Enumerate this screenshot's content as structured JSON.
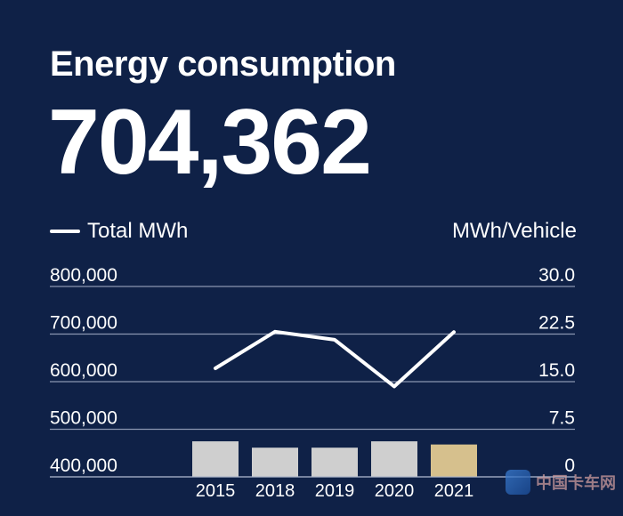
{
  "header": {
    "title": "Energy consumption",
    "big_number": "704,362"
  },
  "legend": {
    "series_label": "Total MWh",
    "right_axis_label": "MWh/Vehicle"
  },
  "watermark": {
    "text": "中国卡车网"
  },
  "colors": {
    "background": "#0f2147",
    "line": "#ffffff",
    "bar": "#cfcfcf",
    "bar_highlight": "#d6c08d",
    "grid": "#aab4cc"
  },
  "chart_data": {
    "type": "bar+line",
    "categories": [
      "2015",
      "2018",
      "2019",
      "2020",
      "2021"
    ],
    "left_axis": {
      "ticks": [
        "800,000",
        "700,000",
        "600,000",
        "500,000",
        "400,000"
      ],
      "ylim": [
        400000,
        800000
      ]
    },
    "right_axis": {
      "ticks": [
        "30.0",
        "22.5",
        "15.0",
        "7.5",
        "0"
      ],
      "ylim": [
        0,
        30
      ]
    },
    "series": [
      {
        "name": "Total MWh",
        "kind": "line",
        "axis": "left",
        "values": [
          628000,
          705000,
          688000,
          590000,
          704362
        ]
      },
      {
        "kind": "bar",
        "axis": "right",
        "values": [
          5.6,
          4.6,
          4.6,
          5.6,
          5.1
        ],
        "highlight_index": 4
      }
    ],
    "grid": true
  }
}
